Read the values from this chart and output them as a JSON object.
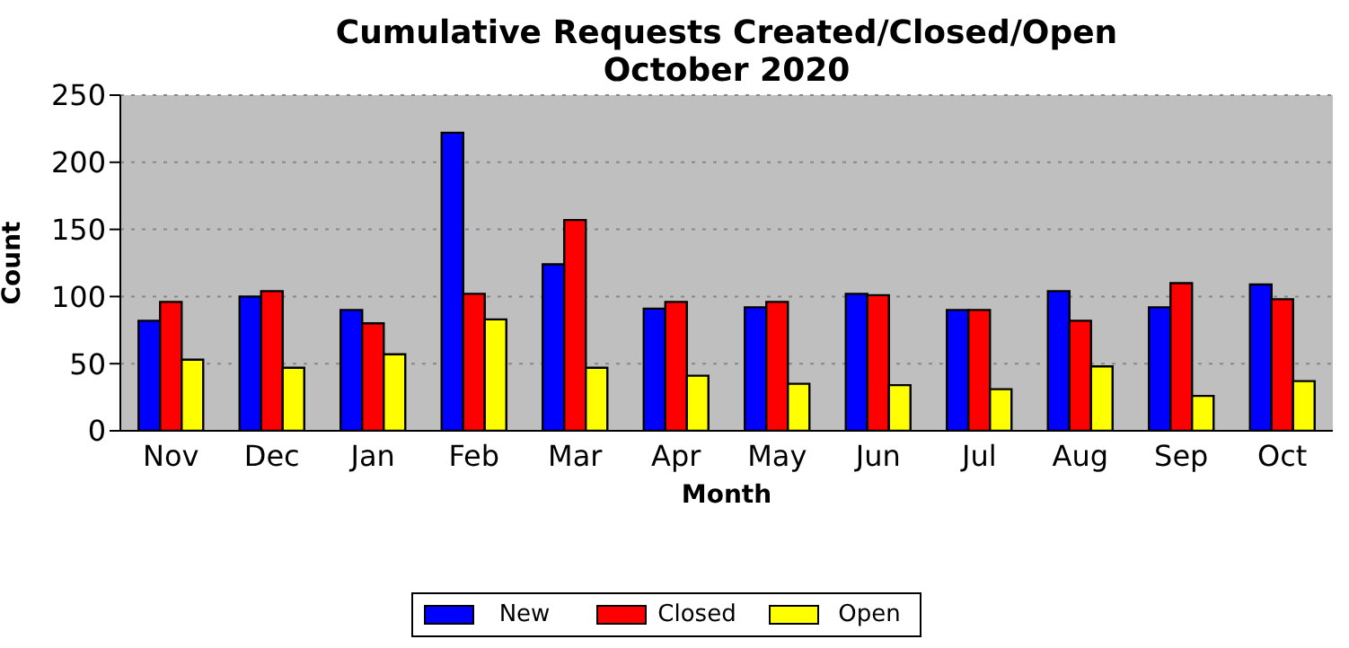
{
  "chart_data": {
    "type": "bar",
    "title": "Cumulative Requests Created/Closed/Open\nOctober 2020",
    "xlabel": "Month",
    "ylabel": "Count",
    "categories": [
      "Nov",
      "Dec",
      "Jan",
      "Feb",
      "Mar",
      "Apr",
      "May",
      "Jun",
      "Jul",
      "Aug",
      "Sep",
      "Oct"
    ],
    "series": [
      {
        "name": "New",
        "color": "#0000ff",
        "values": [
          82,
          100,
          90,
          222,
          124,
          91,
          92,
          102,
          90,
          104,
          92,
          109
        ]
      },
      {
        "name": "Closed",
        "color": "#ff0000",
        "values": [
          96,
          104,
          80,
          102,
          157,
          96,
          96,
          101,
          90,
          82,
          110,
          98
        ]
      },
      {
        "name": "Open",
        "color": "#ffff00",
        "values": [
          53,
          47,
          57,
          83,
          47,
          41,
          35,
          34,
          31,
          48,
          26,
          37
        ]
      }
    ],
    "ylim": [
      0,
      250
    ],
    "yticks": [
      0,
      50,
      100,
      150,
      200,
      250
    ],
    "grid": "y",
    "legend": "bottom"
  }
}
